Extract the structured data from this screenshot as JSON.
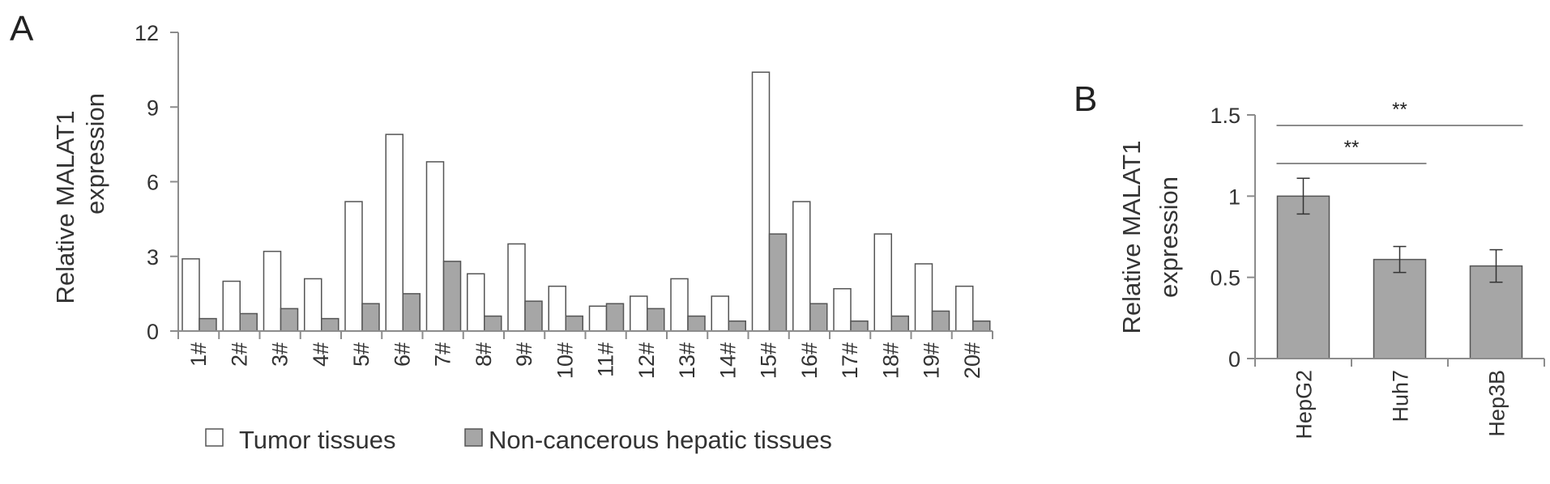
{
  "panels": {
    "a_label": "A",
    "b_label": "B"
  },
  "colors": {
    "tumor": "#ffffff",
    "normal": "#a6a6a6",
    "edge": "#555555",
    "axis": "#8c8c8c"
  },
  "chart_data": [
    {
      "panel": "A",
      "type": "bar",
      "categories": [
        "1#",
        "2#",
        "3#",
        "4#",
        "5#",
        "6#",
        "7#",
        "8#",
        "9#",
        "10#",
        "11#",
        "12#",
        "13#",
        "14#",
        "15#",
        "16#",
        "17#",
        "18#",
        "19#",
        "20#"
      ],
      "series": [
        {
          "name": "Tumor tissues",
          "values": [
            2.9,
            2.0,
            3.2,
            2.1,
            5.2,
            7.9,
            6.8,
            2.3,
            3.5,
            1.8,
            1.0,
            1.4,
            2.1,
            1.4,
            10.4,
            5.2,
            1.7,
            3.9,
            2.7,
            1.8
          ]
        },
        {
          "name": "Non-cancerous hepatic tissues",
          "values": [
            0.5,
            0.7,
            0.9,
            0.5,
            1.1,
            1.5,
            2.8,
            0.6,
            1.2,
            0.6,
            1.1,
            0.9,
            0.6,
            0.4,
            3.9,
            1.1,
            0.4,
            0.6,
            0.8,
            0.4
          ]
        }
      ],
      "ylabel_line1": "Relative MALAT1",
      "ylabel_line2": "expression",
      "ylim": [
        0,
        12
      ],
      "yticks": [
        "0",
        "3",
        "6",
        "9",
        "12"
      ],
      "legend_position": "bottom",
      "grid": false
    },
    {
      "panel": "B",
      "type": "bar",
      "categories": [
        "HepG2",
        "Huh7",
        "Hep3B"
      ],
      "values": [
        1.0,
        0.61,
        0.57
      ],
      "errors": [
        0.11,
        0.08,
        0.1
      ],
      "ylabel_line1": "Relative MALAT1",
      "ylabel_line2": "expression",
      "ylim": [
        0,
        1.5
      ],
      "yticks": [
        "0",
        "0.5",
        "1",
        "1.5"
      ],
      "grid": false,
      "annotations": [
        {
          "from": "HepG2",
          "to": "Hep3B",
          "text": "**"
        },
        {
          "from": "HepG2",
          "to": "Huh7",
          "text": "**"
        }
      ]
    }
  ]
}
